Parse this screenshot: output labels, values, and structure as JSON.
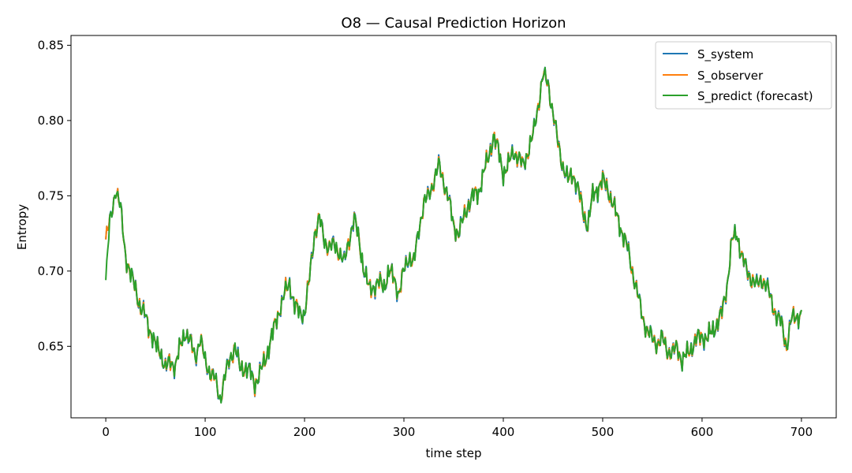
{
  "chart_data": {
    "type": "line",
    "title": "O8 — Causal Prediction Horizon",
    "xlabel": "time step",
    "ylabel": "Entropy",
    "xlim": [
      -35,
      735
    ],
    "ylim": [
      0.6025,
      0.8565
    ],
    "xticks": [
      0,
      100,
      200,
      300,
      400,
      500,
      600,
      700
    ],
    "yticks": [
      0.65,
      0.7,
      0.75,
      0.8,
      0.85
    ],
    "ytick_labels": [
      "0.65",
      "0.70",
      "0.75",
      "0.80",
      "0.85"
    ],
    "grid": false,
    "legend_position": "top-right",
    "keypoints": {
      "x": [
        0,
        5,
        10,
        15,
        20,
        25,
        30,
        35,
        40,
        45,
        50,
        55,
        60,
        65,
        70,
        75,
        80,
        85,
        90,
        95,
        100,
        105,
        110,
        115,
        120,
        125,
        130,
        135,
        140,
        145,
        150,
        155,
        160,
        165,
        170,
        175,
        180,
        185,
        190,
        195,
        200,
        205,
        210,
        215,
        220,
        225,
        230,
        235,
        240,
        245,
        250,
        255,
        260,
        265,
        270,
        275,
        280,
        285,
        290,
        295,
        300,
        305,
        310,
        315,
        320,
        325,
        330,
        335,
        340,
        345,
        350,
        355,
        360,
        365,
        370,
        375,
        380,
        385,
        390,
        395,
        400,
        405,
        410,
        415,
        420,
        425,
        430,
        435,
        440,
        445,
        450,
        455,
        460,
        465,
        470,
        475,
        480,
        485,
        490,
        495,
        500,
        505,
        510,
        515,
        520,
        525,
        530,
        535,
        540,
        545,
        550,
        555,
        560,
        565,
        570,
        575,
        580,
        585,
        590,
        595,
        600,
        605,
        610,
        615,
        620,
        625,
        630,
        635,
        640,
        645,
        650,
        655,
        660,
        665,
        670,
        675,
        680,
        685,
        690,
        695,
        700
      ],
      "y": [
        0.721,
        0.735,
        0.755,
        0.741,
        0.71,
        0.697,
        0.689,
        0.675,
        0.67,
        0.66,
        0.65,
        0.647,
        0.635,
        0.64,
        0.637,
        0.65,
        0.66,
        0.653,
        0.643,
        0.655,
        0.64,
        0.633,
        0.628,
        0.615,
        0.63,
        0.642,
        0.65,
        0.635,
        0.636,
        0.633,
        0.625,
        0.632,
        0.64,
        0.652,
        0.663,
        0.675,
        0.685,
        0.692,
        0.677,
        0.672,
        0.672,
        0.695,
        0.725,
        0.735,
        0.72,
        0.716,
        0.717,
        0.713,
        0.705,
        0.722,
        0.735,
        0.72,
        0.7,
        0.688,
        0.69,
        0.692,
        0.69,
        0.7,
        0.695,
        0.685,
        0.7,
        0.71,
        0.705,
        0.728,
        0.745,
        0.75,
        0.76,
        0.77,
        0.76,
        0.748,
        0.73,
        0.725,
        0.735,
        0.745,
        0.75,
        0.752,
        0.765,
        0.775,
        0.79,
        0.78,
        0.765,
        0.77,
        0.78,
        0.775,
        0.77,
        0.78,
        0.79,
        0.81,
        0.83,
        0.825,
        0.805,
        0.785,
        0.77,
        0.76,
        0.765,
        0.755,
        0.74,
        0.73,
        0.75,
        0.755,
        0.76,
        0.755,
        0.745,
        0.735,
        0.725,
        0.715,
        0.7,
        0.685,
        0.67,
        0.66,
        0.655,
        0.652,
        0.655,
        0.648,
        0.645,
        0.65,
        0.64,
        0.645,
        0.65,
        0.655,
        0.657,
        0.655,
        0.66,
        0.665,
        0.672,
        0.69,
        0.72,
        0.725,
        0.71,
        0.7,
        0.695,
        0.69,
        0.695,
        0.69,
        0.68,
        0.67,
        0.665,
        0.65,
        0.668,
        0.67,
        0.671
      ]
    },
    "series": [
      {
        "name": "S_system",
        "color": "#1f77b4"
      },
      {
        "name": "S_observer",
        "color": "#ff7f0e"
      },
      {
        "name": "S_predict (forecast)",
        "color": "#2ca02c"
      }
    ]
  }
}
